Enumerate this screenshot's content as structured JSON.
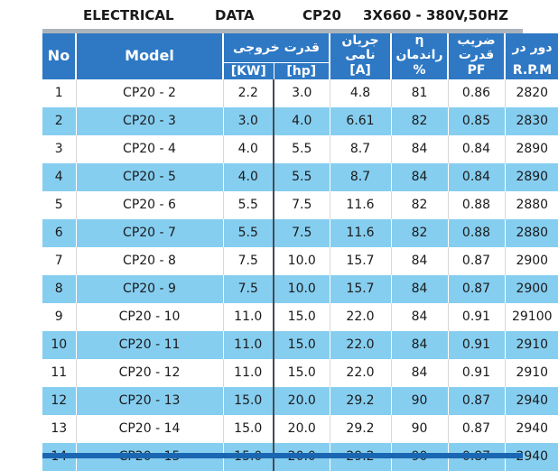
{
  "title": {
    "part1": "ELECTRICAL",
    "part2": "DATA",
    "part3": "CP20",
    "part4": "3X660 - 380V,50HZ"
  },
  "headers": {
    "no": "No",
    "model": "Model",
    "power_group": "قدرت خروجی",
    "kw": "[KW]",
    "hp": "[hp]",
    "current": "جریان نامی",
    "current_unit": "[A]",
    "efficiency": "η راندمان",
    "efficiency_unit": "%",
    "pf": "ضریب قدرت",
    "pf_unit": "PF",
    "rpm": "دور در",
    "rpm_unit": "R.P.M"
  },
  "rows": [
    {
      "no": "1",
      "model": "CP20 - 2",
      "kw": "2.2",
      "hp": "3.0",
      "a": "4.8",
      "eff": "81",
      "pf": "0.86",
      "rpm": "2820"
    },
    {
      "no": "2",
      "model": "CP20 - 3",
      "kw": "3.0",
      "hp": "4.0",
      "a": "6.61",
      "eff": "82",
      "pf": "0.85",
      "rpm": "2830"
    },
    {
      "no": "3",
      "model": "CP20 - 4",
      "kw": "4.0",
      "hp": "5.5",
      "a": "8.7",
      "eff": "84",
      "pf": "0.84",
      "rpm": "2890"
    },
    {
      "no": "4",
      "model": "CP20 - 5",
      "kw": "4.0",
      "hp": "5.5",
      "a": "8.7",
      "eff": "84",
      "pf": "0.84",
      "rpm": "2890"
    },
    {
      "no": "5",
      "model": "CP20 - 6",
      "kw": "5.5",
      "hp": "7.5",
      "a": "11.6",
      "eff": "82",
      "pf": "0.88",
      "rpm": "2880"
    },
    {
      "no": "6",
      "model": "CP20 - 7",
      "kw": "5.5",
      "hp": "7.5",
      "a": "11.6",
      "eff": "82",
      "pf": "0.88",
      "rpm": "2880"
    },
    {
      "no": "7",
      "model": "CP20 - 8",
      "kw": "7.5",
      "hp": "10.0",
      "a": "15.7",
      "eff": "84",
      "pf": "0.87",
      "rpm": "2900"
    },
    {
      "no": "8",
      "model": "CP20 - 9",
      "kw": "7.5",
      "hp": "10.0",
      "a": "15.7",
      "eff": "84",
      "pf": "0.87",
      "rpm": "2900"
    },
    {
      "no": "9",
      "model": "CP20 - 10",
      "kw": "11.0",
      "hp": "15.0",
      "a": "22.0",
      "eff": "84",
      "pf": "0.91",
      "rpm": "29100"
    },
    {
      "no": "10",
      "model": "CP20 - 11",
      "kw": "11.0",
      "hp": "15.0",
      "a": "22.0",
      "eff": "84",
      "pf": "0.91",
      "rpm": "2910"
    },
    {
      "no": "11",
      "model": "CP20 - 12",
      "kw": "11.0",
      "hp": "15.0",
      "a": "22.0",
      "eff": "84",
      "pf": "0.91",
      "rpm": "2910"
    },
    {
      "no": "12",
      "model": "CP20 - 13",
      "kw": "15.0",
      "hp": "20.0",
      "a": "29.2",
      "eff": "90",
      "pf": "0.87",
      "rpm": "2940"
    },
    {
      "no": "13",
      "model": "CP20 - 14",
      "kw": "15.0",
      "hp": "20.0",
      "a": "29.2",
      "eff": "90",
      "pf": "0.87",
      "rpm": "2940"
    },
    {
      "no": "14",
      "model": "CP20 - 15",
      "kw": "15.0",
      "hp": "20.0",
      "a": "29.2",
      "eff": "90",
      "pf": "0.87",
      "rpm": "2940"
    }
  ],
  "colors": {
    "header_blue": "#2e78c4",
    "row_alt": "#86cef0",
    "bottom_bar": "#1a66b2",
    "top_bar": "#aeb4bb"
  }
}
